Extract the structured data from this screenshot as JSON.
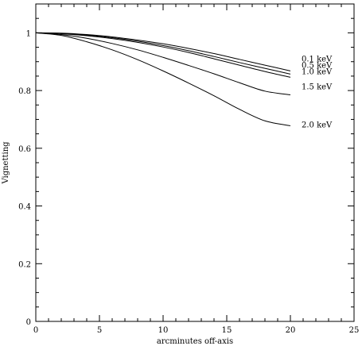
{
  "chart_data": {
    "type": "line",
    "title": "",
    "xlabel": "arcminutes off-axis",
    "ylabel": "Vignetting",
    "xlim": [
      0,
      25
    ],
    "ylim": [
      0,
      1.1
    ],
    "x_ticks": [
      0,
      5,
      10,
      15,
      20,
      25
    ],
    "y_ticks": [
      0,
      0.2,
      0.4,
      0.6,
      0.8,
      1
    ],
    "x_tick_labels": [
      "0",
      "5",
      "10",
      "15",
      "20",
      "25"
    ],
    "y_tick_labels": [
      "0",
      "0.2",
      "0.4",
      "0.6",
      "0.8",
      "1"
    ],
    "grid": false,
    "legend": "curve labels at right end of each line",
    "x": [
      0,
      2,
      4,
      6,
      8,
      10,
      12,
      14,
      16,
      18,
      20
    ],
    "series": [
      {
        "name": "0.1 keV",
        "values": [
          1.0,
          0.999,
          0.994,
          0.986,
          0.975,
          0.962,
          0.946,
          0.928,
          0.908,
          0.888,
          0.868
        ]
      },
      {
        "name": "0.5 keV",
        "values": [
          1.0,
          0.998,
          0.992,
          0.983,
          0.971,
          0.956,
          0.938,
          0.918,
          0.897,
          0.877,
          0.857
        ]
      },
      {
        "name": "1.0 keV",
        "values": [
          1.0,
          0.997,
          0.99,
          0.98,
          0.967,
          0.951,
          0.932,
          0.91,
          0.888,
          0.866,
          0.846
        ]
      },
      {
        "name": "1.5 keV",
        "values": [
          1.0,
          0.994,
          0.981,
          0.963,
          0.941,
          0.915,
          0.887,
          0.858,
          0.827,
          0.798,
          0.785
        ]
      },
      {
        "name": "2.0 keV",
        "values": [
          1.0,
          0.991,
          0.969,
          0.941,
          0.907,
          0.868,
          0.826,
          0.782,
          0.735,
          0.695,
          0.678
        ]
      }
    ]
  }
}
